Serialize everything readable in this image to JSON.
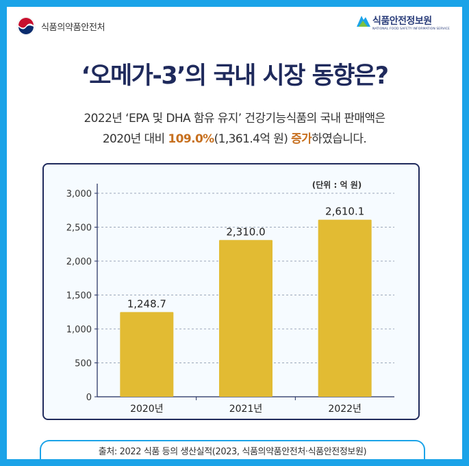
{
  "header": {
    "ministry_name": "식품의약품안전처",
    "institute_name": "식품안전정보원",
    "institute_subtitle": "NATIONAL FOOD SAFETY INFORMATION SERVICE"
  },
  "title": "‘오메가-3’의 국내 시장 동향은?",
  "subtitle": {
    "line1": "2022년 ‘EPA 및 DHA 함유 유지’ 건강기능식품의 국내 판매액은",
    "line2_a": "2020년 대비 ",
    "line2_pct": "109.0%",
    "line2_b": "(1,361.4억 원) ",
    "line2_inc": "증가",
    "line2_c": "하였습니다."
  },
  "footer": {
    "source": "출처: 2022 식품 등의 생산실적(2023, 식품의약품안전처·식품안전정보원)"
  },
  "colors": {
    "background": "#1ba3e8",
    "title": "#1f2a5c",
    "highlight": "#c7701f",
    "bar": "#e2bb33",
    "grid": "#9aa6b8",
    "axis": "#1f2a5c"
  },
  "chart_data": {
    "type": "bar",
    "title": "",
    "unit_label": "(단위 : 억 원)",
    "categories": [
      "2020년",
      "2021년",
      "2022년"
    ],
    "values": [
      1248.7,
      2310.0,
      2610.1
    ],
    "value_labels": [
      "1,248.7",
      "2,310.0",
      "2,610.1"
    ],
    "ylim": [
      0,
      3000
    ],
    "yticks": [
      0,
      500,
      1000,
      1500,
      2000,
      2500,
      3000
    ],
    "ytick_labels": [
      "0",
      "500",
      "1,000",
      "1,500",
      "2,000",
      "2,500",
      "3,000"
    ],
    "grid": true
  }
}
